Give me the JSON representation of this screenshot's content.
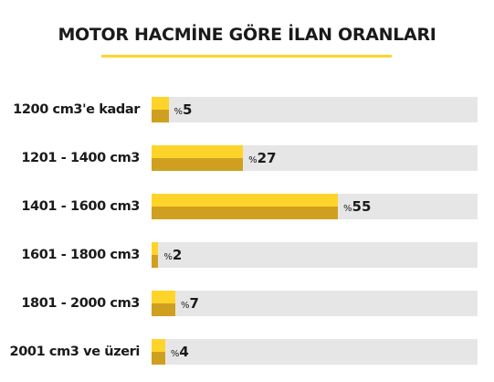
{
  "chart_data": {
    "type": "bar",
    "orientation": "horizontal",
    "title": "MOTOR HACMİNE GÖRE İLAN ORANLARI",
    "categories": [
      "1200 cm3'e kadar",
      "1201 - 1400 cm3",
      "1401 - 1600 cm3",
      "1601 - 1800 cm3",
      "1801 - 2000 cm3",
      "2001 cm3 ve üzeri"
    ],
    "values": [
      5,
      27,
      55,
      2,
      7,
      4
    ],
    "value_prefix": "%",
    "xlim": [
      0,
      100
    ],
    "grid": false,
    "legend": "none",
    "colors": {
      "bar_top": "#ffd42a",
      "bar_bottom": "#cfa020",
      "track": "#e6e6e6",
      "title_underline": "#ffd42a",
      "text": "#1a1a1a"
    }
  }
}
